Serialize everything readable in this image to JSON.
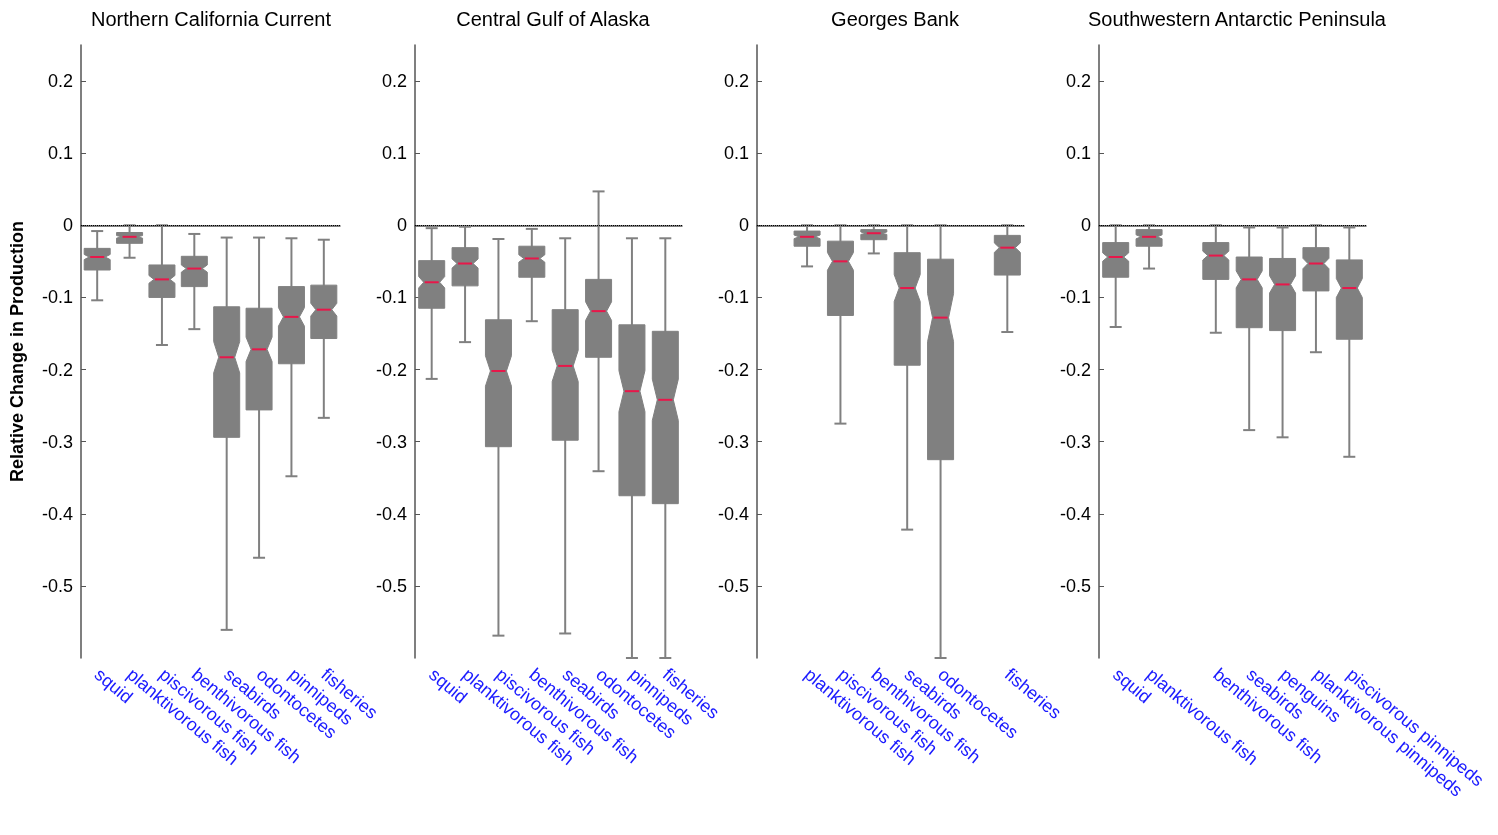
{
  "chart_data": [
    {
      "type": "box",
      "title": "Northern California Current",
      "ylabel": "Relative Change in Production",
      "color": "#808080",
      "categories": [
        "squid",
        "planktivorous fish",
        "piscivorous fish",
        "benthivorous fish",
        "seabirds",
        "odontocetes",
        "pinnipeds",
        "fisheries"
      ],
      "boxes": [
        {
          "low": -0.104,
          "q1": -0.062,
          "median": -0.044,
          "q3": -0.032,
          "high": -0.008
        },
        {
          "low": -0.045,
          "q1": -0.025,
          "median": -0.016,
          "q3": -0.01,
          "high": 0
        },
        {
          "low": -0.166,
          "q1": -0.1,
          "median": -0.075,
          "q3": -0.055,
          "high": 0
        },
        {
          "low": -0.144,
          "q1": -0.085,
          "median": -0.06,
          "q3": -0.043,
          "high": -0.012
        },
        {
          "low": -0.561,
          "q1": -0.294,
          "median": -0.183,
          "q3": -0.113,
          "high": -0.017
        },
        {
          "low": -0.461,
          "q1": -0.256,
          "median": -0.172,
          "q3": -0.115,
          "high": -0.017
        },
        {
          "low": -0.348,
          "q1": -0.192,
          "median": -0.127,
          "q3": -0.085,
          "high": -0.018
        },
        {
          "low": -0.267,
          "q1": -0.157,
          "median": -0.117,
          "q3": -0.083,
          "high": -0.02
        }
      ],
      "ylim": [
        -0.6,
        0.25
      ],
      "yticks": [
        -0.5,
        -0.4,
        -0.3,
        -0.2,
        -0.1,
        0,
        0.1,
        0.2
      ],
      "ref_lines": [
        {
          "axis": "y",
          "value": 0,
          "color": "#000000",
          "line_style": "dotted"
        }
      ]
    },
    {
      "type": "box",
      "title": "Central Gulf of Alaska",
      "color": "#808080",
      "categories": [
        "squid",
        "planktivorous fish",
        "piscivorous fish",
        "benthivorous fish",
        "seabirds",
        "odontocetes",
        "pinnipeds",
        "fisheries"
      ],
      "boxes": [
        {
          "low": -0.213,
          "q1": -0.115,
          "median": -0.079,
          "q3": -0.049,
          "high": -0.004
        },
        {
          "low": -0.162,
          "q1": -0.084,
          "median": -0.053,
          "q3": -0.031,
          "high": -0.002
        },
        {
          "low": -0.569,
          "q1": -0.307,
          "median": -0.202,
          "q3": -0.131,
          "high": -0.019
        },
        {
          "low": -0.133,
          "q1": -0.072,
          "median": -0.046,
          "q3": -0.029,
          "high": -0.005
        },
        {
          "low": -0.566,
          "q1": -0.298,
          "median": -0.195,
          "q3": -0.117,
          "high": -0.018
        },
        {
          "low": -0.341,
          "q1": -0.183,
          "median": -0.119,
          "q3": -0.075,
          "high": 0.047
        },
        {
          "low": -0.6,
          "q1": -0.375,
          "median": -0.23,
          "q3": -0.138,
          "high": -0.018
        },
        {
          "low": -0.6,
          "q1": -0.386,
          "median": -0.242,
          "q3": -0.147,
          "high": -0.018
        }
      ],
      "ylim": [
        -0.6,
        0.25
      ],
      "yticks": [
        -0.5,
        -0.4,
        -0.3,
        -0.2,
        -0.1,
        0,
        0.1,
        0.2
      ],
      "ref_lines": [
        {
          "axis": "y",
          "value": 0,
          "color": "#000000",
          "line_style": "dotted"
        }
      ]
    },
    {
      "type": "box",
      "title": "Georges Bank",
      "color": "#808080",
      "categories": [
        null,
        "planktivorous fish",
        "piscivorous fish",
        "benthivorous fish",
        "seabirds",
        "odontocetes",
        null,
        "fisheries"
      ],
      "boxes": [
        null,
        {
          "low": -0.057,
          "q1": -0.029,
          "median": -0.016,
          "q3": -0.008,
          "high": 0
        },
        {
          "low": -0.275,
          "q1": -0.125,
          "median": -0.05,
          "q3": -0.022,
          "high": 0
        },
        {
          "low": -0.039,
          "q1": -0.02,
          "median": -0.011,
          "q3": -0.006,
          "high": 0
        },
        {
          "low": -0.422,
          "q1": -0.194,
          "median": -0.087,
          "q3": -0.038,
          "high": 0
        },
        {
          "low": -0.6,
          "q1": -0.325,
          "median": -0.128,
          "q3": -0.047,
          "high": 0
        },
        null,
        {
          "low": -0.148,
          "q1": -0.069,
          "median": -0.031,
          "q3": -0.014,
          "high": 0
        }
      ],
      "ylim": [
        -0.6,
        0.25
      ],
      "yticks": [
        -0.5,
        -0.4,
        -0.3,
        -0.2,
        -0.1,
        0,
        0.1,
        0.2
      ],
      "ref_lines": [
        {
          "axis": "y",
          "value": 0,
          "color": "#000000",
          "line_style": "dotted"
        }
      ]
    },
    {
      "type": "box",
      "title": "Southwestern Antarctic Peninsula",
      "color": "#808080",
      "categories": [
        "squid",
        "planktivorous fish",
        null,
        "benthivorous fish",
        "seabirds",
        "penguins",
        "planktivorous pinnipeds",
        "piscivorous pinnipeds"
      ],
      "boxes": [
        {
          "low": -0.141,
          "q1": -0.072,
          "median": -0.044,
          "q3": -0.024,
          "high": 0
        },
        {
          "low": -0.06,
          "q1": -0.029,
          "median": -0.016,
          "q3": -0.006,
          "high": 0
        },
        null,
        {
          "low": -0.149,
          "q1": -0.075,
          "median": -0.042,
          "q3": -0.024,
          "high": 0
        },
        {
          "low": -0.284,
          "q1": -0.142,
          "median": -0.075,
          "q3": -0.044,
          "high": -0.003
        },
        {
          "low": -0.294,
          "q1": -0.146,
          "median": -0.082,
          "q3": -0.046,
          "high": -0.003
        },
        {
          "low": -0.176,
          "q1": -0.091,
          "median": -0.053,
          "q3": -0.031,
          "high": 0
        },
        {
          "low": -0.321,
          "q1": -0.158,
          "median": -0.087,
          "q3": -0.048,
          "high": -0.003
        }
      ],
      "ylim": [
        -0.6,
        0.25
      ],
      "yticks": [
        -0.5,
        -0.4,
        -0.3,
        -0.2,
        -0.1,
        0,
        0.1,
        0.2
      ],
      "ref_lines": [
        {
          "axis": "y",
          "value": 0,
          "color": "#000000",
          "line_style": "dotted"
        }
      ]
    }
  ]
}
